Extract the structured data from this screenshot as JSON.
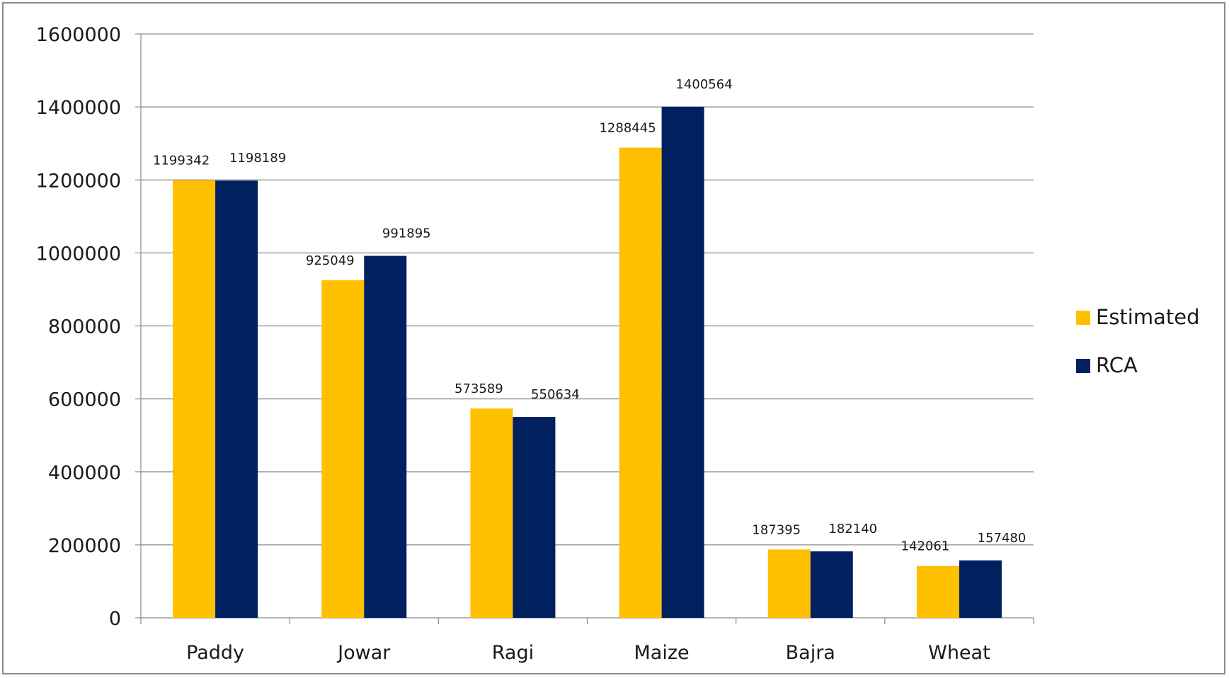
{
  "chart_data": {
    "type": "bar",
    "title": "",
    "xlabel": "",
    "ylabel": "",
    "categories": [
      "Paddy",
      "Jowar",
      "Ragi",
      "Maize",
      "Bajra",
      "Wheat"
    ],
    "series": [
      {
        "name": "Estimated",
        "color": "#FFC000",
        "values": [
          1199342,
          925049,
          573589,
          1288445,
          187395,
          142061
        ],
        "labels": [
          "1199342",
          "925049",
          "573589",
          "1288445",
          "187395",
          "142061"
        ]
      },
      {
        "name": "RCA",
        "color": "#002060",
        "values": [
          1198189,
          991895,
          550634,
          1400564,
          182140,
          157480
        ],
        "labels": [
          "1198189",
          "991895",
          "550634",
          "1400564",
          "182140",
          "157480"
        ]
      }
    ],
    "ylim": [
      0,
      1600000
    ],
    "yticks": [
      0,
      200000,
      400000,
      600000,
      800000,
      1000000,
      1200000,
      1400000,
      1600000
    ],
    "ytick_labels": [
      "0",
      "200000",
      "400000",
      "600000",
      "800000",
      "1000000",
      "1200000",
      "1400000",
      "1600000"
    ],
    "grid": true,
    "legend_position": "right"
  }
}
